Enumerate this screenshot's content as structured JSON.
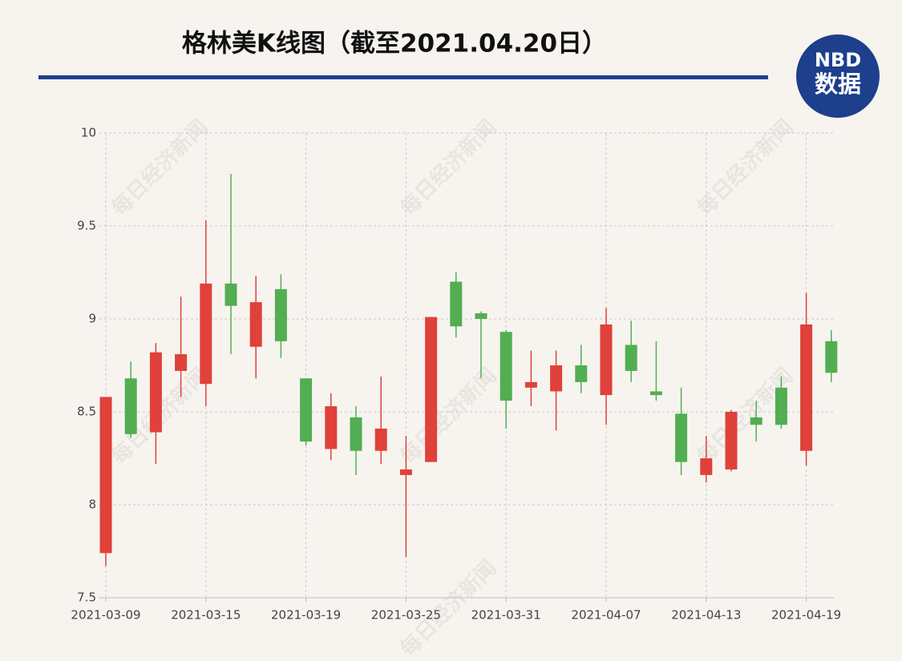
{
  "chart_data": {
    "type": "candlestick",
    "title": "格林美K线图（截至2021.04.20日）",
    "logo": {
      "top": "NBD",
      "bottom": "数据"
    },
    "watermark": "每日经济新闻",
    "categories": [
      "2021-03-09",
      null,
      null,
      null,
      "2021-03-15",
      null,
      null,
      null,
      "2021-03-19",
      null,
      null,
      null,
      "2021-03-25",
      null,
      null,
      null,
      "2021-03-31",
      null,
      null,
      null,
      "2021-04-07",
      null,
      null,
      null,
      "2021-04-13",
      null,
      null,
      null,
      "2021-04-19",
      null
    ],
    "open": [
      7.74,
      8.68,
      8.39,
      8.72,
      8.65,
      9.19,
      8.85,
      9.16,
      8.68,
      8.3,
      8.47,
      8.29,
      8.16,
      8.23,
      9.2,
      9.03,
      8.93,
      8.63,
      8.61,
      8.75,
      8.59,
      8.86,
      8.61,
      8.49,
      8.16,
      8.19,
      8.47,
      8.63,
      8.29,
      8.88
    ],
    "high": [
      8.58,
      8.77,
      8.87,
      9.12,
      9.53,
      9.78,
      9.23,
      9.24,
      8.68,
      8.6,
      8.53,
      8.69,
      8.37,
      9.01,
      9.25,
      9.04,
      8.94,
      8.83,
      8.83,
      8.86,
      9.06,
      8.99,
      8.88,
      8.63,
      8.37,
      8.51,
      8.56,
      8.69,
      9.14,
      8.94
    ],
    "low": [
      7.67,
      8.36,
      8.22,
      8.58,
      8.53,
      8.81,
      8.68,
      8.79,
      8.32,
      8.24,
      8.16,
      8.22,
      7.72,
      8.23,
      8.9,
      8.68,
      8.41,
      8.53,
      8.4,
      8.6,
      8.43,
      8.66,
      8.56,
      8.16,
      8.12,
      8.18,
      8.34,
      8.41,
      8.21,
      8.66
    ],
    "close": [
      8.58,
      8.38,
      8.82,
      8.81,
      9.19,
      9.07,
      9.09,
      8.88,
      8.34,
      8.53,
      8.29,
      8.41,
      8.19,
      9.01,
      8.96,
      9.0,
      8.56,
      8.66,
      8.75,
      8.66,
      8.97,
      8.72,
      8.59,
      8.23,
      8.25,
      8.5,
      8.43,
      8.43,
      8.97,
      8.71
    ],
    "up_color": "#e0413a",
    "down_color": "#52ae52",
    "ylim": [
      7.5,
      10
    ],
    "yticks": [
      7.5,
      8,
      8.5,
      9,
      9.5,
      10
    ],
    "grid": true
  }
}
